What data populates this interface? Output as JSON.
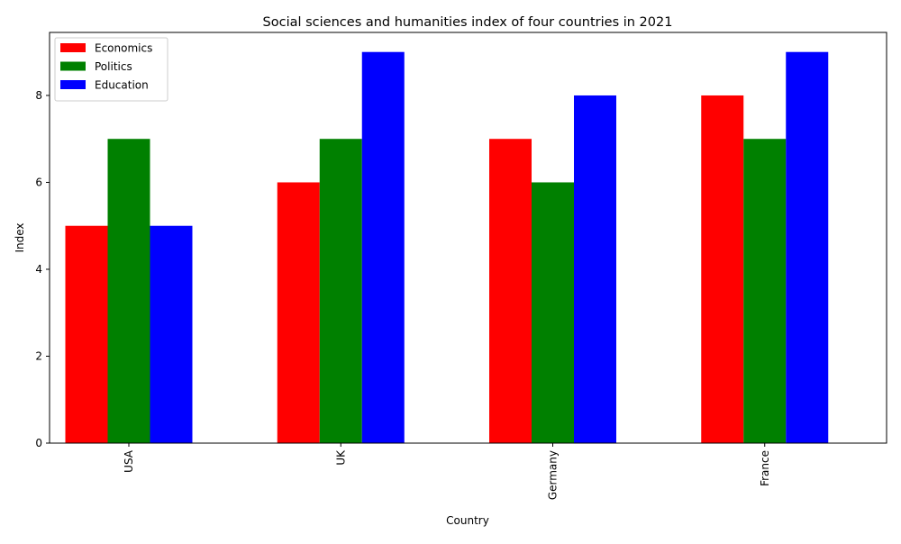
{
  "chart_data": {
    "type": "bar",
    "title": "Social sciences and humanities index of four countries in 2021",
    "xlabel": "Country",
    "ylabel": "Index",
    "categories": [
      "USA",
      "UK",
      "Germany",
      "France"
    ],
    "series": [
      {
        "name": "Economics",
        "color": "#ff0000",
        "values": [
          5,
          6,
          7,
          8
        ]
      },
      {
        "name": "Politics",
        "color": "#008000",
        "values": [
          7,
          7,
          6,
          7
        ]
      },
      {
        "name": "Education",
        "color": "#0000ff",
        "values": [
          5,
          9,
          8,
          9
        ]
      }
    ],
    "ylim": [
      0,
      9.45
    ],
    "yticks": [
      0,
      2,
      4,
      6,
      8
    ],
    "xtick_rotation": 90,
    "grid": false,
    "legend_position": "upper left"
  }
}
